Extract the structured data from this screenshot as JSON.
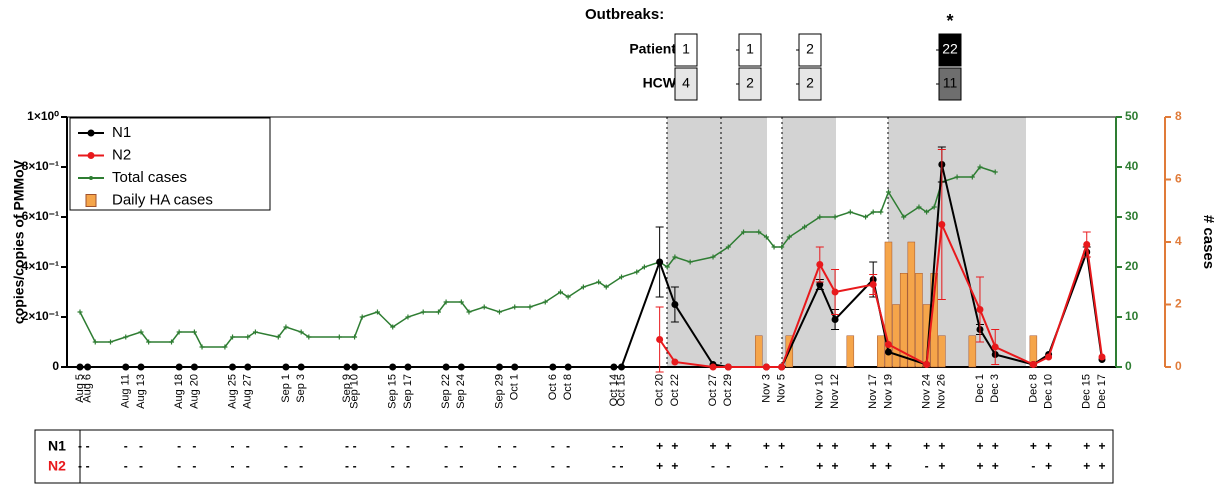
{
  "chart_data": {
    "type": "line",
    "outbreaks": {
      "title": "Outbreaks:",
      "patient_label": "Patient",
      "hcw_label": "HCW",
      "patient": [
        1,
        1,
        2,
        22
      ],
      "hcw": [
        4,
        2,
        2,
        11
      ],
      "note": "*"
    },
    "ylabel": "copies/copies of PMMoV",
    "y2label": "# cases",
    "categories": [
      "Aug 5",
      "Aug 6",
      "Aug 11",
      "Aug 13",
      "Aug 18",
      "Aug 20",
      "Aug 25",
      "Aug 27",
      "Sep 1",
      "Sep 3",
      "Sep 9",
      "Sep 10",
      "Sep 15",
      "Sep 17",
      "Sep 22",
      "Sep 24",
      "Sep 29",
      "Oct 1",
      "Oct 6",
      "Oct 8",
      "Oct 14",
      "Oct 15",
      "Oct 20",
      "Oct 22",
      "Oct 27",
      "Oct 29",
      "Nov 3",
      "Nov 5",
      "Nov 10",
      "Nov 12",
      "Nov 17",
      "Nov 19",
      "Nov 24",
      "Nov 26",
      "Dec 1",
      "Dec 3",
      "Dec 8",
      "Dec 10",
      "Dec 15",
      "Dec 17"
    ],
    "ylim": [
      0,
      1
    ],
    "yticks": [
      0,
      {
        "value": 0.2,
        "label": "2×10⁻¹"
      },
      {
        "value": 0.4,
        "label": "4×10⁻¹"
      },
      {
        "value": 0.6,
        "label": "6×10⁻¹"
      },
      {
        "value": 0.8,
        "label": "8×10⁻¹"
      },
      {
        "value": 1,
        "label": "1×10⁰"
      }
    ],
    "y2lim": [
      0,
      50
    ],
    "y2ticks": [
      0,
      10,
      20,
      30,
      40,
      50
    ],
    "y3lim": [
      0,
      8
    ],
    "y3ticks": [
      0,
      2,
      4,
      6,
      8
    ],
    "series": [
      {
        "name": "N1",
        "color": "#000000",
        "values": [
          0,
          0,
          0,
          0,
          0,
          0,
          0,
          0,
          0,
          0,
          0,
          0,
          0,
          0,
          0,
          0,
          0,
          0,
          0,
          0,
          0,
          0,
          0.42,
          0.25,
          0.01,
          0,
          0,
          0,
          0.33,
          0.19,
          0.35,
          0.06,
          0.01,
          0.81,
          0.15,
          0.05,
          0.01,
          0.05,
          0.46,
          0.03
        ],
        "errors": [
          null,
          null,
          null,
          null,
          null,
          null,
          null,
          null,
          null,
          null,
          null,
          null,
          null,
          null,
          null,
          null,
          null,
          null,
          null,
          null,
          null,
          null,
          0.14,
          0.07,
          null,
          null,
          null,
          null,
          0.02,
          0.04,
          0.07,
          null,
          null,
          0.07,
          0.02,
          null,
          null,
          null,
          0.02,
          null
        ]
      },
      {
        "name": "N2",
        "color": "#e8191c",
        "values": [
          null,
          null,
          null,
          null,
          null,
          null,
          null,
          null,
          null,
          null,
          null,
          null,
          null,
          null,
          null,
          null,
          null,
          null,
          null,
          null,
          null,
          null,
          0.11,
          0.02,
          0,
          0,
          0,
          0,
          0.41,
          0.3,
          0.33,
          0.09,
          0.01,
          0.57,
          0.23,
          0.08,
          0.01,
          0.04,
          0.49,
          0.04
        ],
        "errors": [
          null,
          null,
          null,
          null,
          null,
          null,
          null,
          null,
          null,
          null,
          null,
          null,
          null,
          null,
          null,
          null,
          null,
          null,
          null,
          null,
          null,
          null,
          0.13,
          null,
          null,
          null,
          null,
          null,
          0.07,
          0.09,
          0.04,
          null,
          null,
          0.3,
          0.13,
          0.07,
          null,
          null,
          0.05,
          null
        ]
      },
      {
        "name": "Total cases",
        "color": "#2e7d32",
        "axis": "y2",
        "x": [
          "Aug 5",
          "Aug 7",
          "Aug 9",
          "Aug 11",
          "Aug 13",
          "Aug 14",
          "Aug 17",
          "Aug 18",
          "Aug 20",
          "Aug 21",
          "Aug 24",
          "Aug 25",
          "Aug 27",
          "Aug 28",
          "Aug 31",
          "Sep 1",
          "Sep 3",
          "Sep 4",
          "Sep 8",
          "Sep 10",
          "Sep 11",
          "Sep 13",
          "Sep 15",
          "Sep 17",
          "Sep 19",
          "Sep 21",
          "Sep 22",
          "Sep 24",
          "Sep 25",
          "Sep 27",
          "Sep 29",
          "Oct 1",
          "Oct 3",
          "Oct 5",
          "Oct 7",
          "Oct 8",
          "Oct 10",
          "Oct 12",
          "Oct 13",
          "Oct 15",
          "Oct 17",
          "Oct 18",
          "Oct 20",
          "Oct 21",
          "Oct 22",
          "Oct 24",
          "Oct 27",
          "Oct 29",
          "Oct 31",
          "Nov 2",
          "Nov 3",
          "Nov 4",
          "Nov 5",
          "Nov 6",
          "Nov 8",
          "Nov 10",
          "Nov 12",
          "Nov 14",
          "Nov 16",
          "Nov 17",
          "Nov 18",
          "Nov 19",
          "Nov 21",
          "Nov 23",
          "Nov 24",
          "Nov 25",
          "Nov 26",
          "Nov 28",
          "Nov 30",
          "Dec 1",
          "Dec 3"
        ],
        "values": [
          11,
          5,
          5,
          6,
          7,
          5,
          5,
          7,
          7,
          4,
          4,
          6,
          6,
          7,
          6,
          8,
          7,
          6,
          6,
          6,
          10,
          11,
          8,
          10,
          11,
          11,
          13,
          13,
          11,
          12,
          11,
          12,
          12,
          13,
          15,
          14,
          16,
          17,
          16,
          18,
          19,
          20,
          21,
          20,
          22,
          21,
          22,
          24,
          27,
          27,
          26,
          24,
          24,
          26,
          28,
          30,
          30,
          31,
          30,
          31,
          31,
          35,
          30,
          32,
          31,
          32,
          37,
          38,
          38,
          40,
          39
        ]
      },
      {
        "name": "Daily HA cases",
        "color": "#f5a54a",
        "type": "bar",
        "axis": "y3",
        "x": [
          "Nov 2",
          "Nov 6",
          "Nov 14",
          "Nov 18",
          "Nov 19",
          "Nov 20",
          "Nov 21",
          "Nov 22",
          "Nov 23",
          "Nov 24",
          "Nov 25",
          "Nov 26",
          "Nov 30",
          "Dec 8"
        ],
        "values": [
          1,
          1,
          1,
          1,
          4,
          2,
          3,
          4,
          3,
          2,
          3,
          1,
          1,
          1
        ]
      }
    ],
    "table": {
      "rows": [
        {
          "label": "N1",
          "color": "#000000",
          "values": [
            "-",
            "-",
            "-",
            "-",
            "-",
            "-",
            "-",
            "-",
            "-",
            "-",
            "-",
            "-",
            "-",
            "-",
            "-",
            "-",
            "-",
            "-",
            "-",
            "-",
            "-",
            "-",
            "+",
            "+",
            "+",
            "+",
            "+",
            "+",
            "+",
            "+",
            "+",
            "+",
            "+",
            "+",
            "+",
            "+",
            "+",
            "+",
            "+",
            "+"
          ]
        },
        {
          "label": "N2",
          "color": "#e8191c",
          "values": [
            "-",
            "-",
            "-",
            "-",
            "-",
            "-",
            "-",
            "-",
            "-",
            "-",
            "-",
            "-",
            "-",
            "-",
            "-",
            "-",
            "-",
            "-",
            "-",
            "-",
            "-",
            "-",
            "+",
            "+",
            "-",
            "-",
            "-",
            "-",
            "+",
            "+",
            "+",
            "+",
            "-",
            "+",
            "+",
            "+",
            "-",
            "+",
            "+",
            "+"
          ]
        }
      ]
    }
  }
}
